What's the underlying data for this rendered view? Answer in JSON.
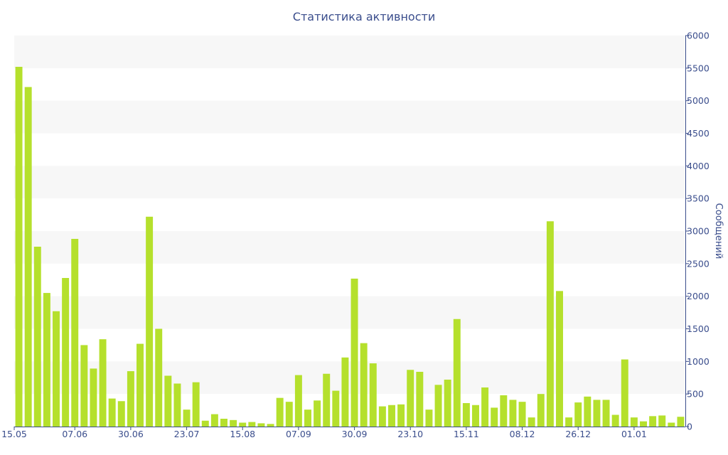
{
  "chart_data": {
    "type": "bar",
    "title": "Статистика активности",
    "xlabel": "",
    "ylabel": "Сообщений",
    "ylim": [
      0,
      6000
    ],
    "y_ticks": [
      0,
      500,
      1000,
      1500,
      2000,
      2500,
      3000,
      3500,
      4000,
      4500,
      5000,
      5500,
      6000
    ],
    "y_axis_position": "right",
    "grid": "alternating horizontal bands",
    "colors": {
      "bar": "#b5e02c",
      "text": "#3a4d8c",
      "band": "#f7f7f7",
      "axis": "#3a4d8c"
    },
    "x_tick_labels": [
      {
        "label": "15.05",
        "index": 0
      },
      {
        "label": "07.06",
        "index": 6
      },
      {
        "label": "30.06",
        "index": 12
      },
      {
        "label": "23.07",
        "index": 18
      },
      {
        "label": "15.08",
        "index": 24
      },
      {
        "label": "07.09",
        "index": 30
      },
      {
        "label": "30.09",
        "index": 36
      },
      {
        "label": "23.10",
        "index": 42
      },
      {
        "label": "15.11",
        "index": 48
      },
      {
        "label": "08.12",
        "index": 54
      },
      {
        "label": "26.12",
        "index": 60
      },
      {
        "label": "01.01",
        "index": 66
      }
    ],
    "values": [
      5520,
      5210,
      2760,
      2050,
      1770,
      2280,
      2880,
      1250,
      890,
      1340,
      430,
      390,
      850,
      1270,
      3220,
      1500,
      780,
      660,
      260,
      680,
      90,
      190,
      120,
      100,
      60,
      70,
      50,
      40,
      440,
      380,
      790,
      260,
      400,
      810,
      550,
      1060,
      2270,
      1280,
      970,
      310,
      330,
      340,
      870,
      840,
      260,
      640,
      720,
      1650,
      360,
      330,
      600,
      290,
      480,
      410,
      380,
      140,
      500,
      3150,
      2080,
      140,
      370,
      460,
      410,
      410,
      180,
      1030,
      140,
      80,
      160,
      170,
      60,
      150
    ]
  }
}
